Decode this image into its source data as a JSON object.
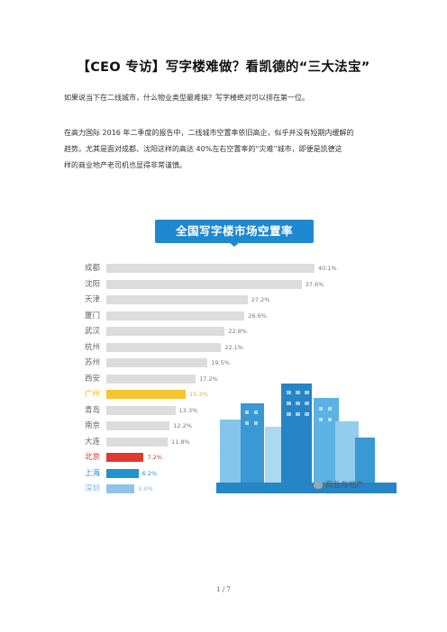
{
  "article": {
    "title": "【CEO 专访】写字楼难做？看凯德的“三大法宝”",
    "para1": "如果说当下在二线城市，什么物业类型最难搞？写字楼绝对可以排在第一位。",
    "para2_line1": "在高力国际 2016 年二季度的报告中，二线城市空置率依旧高企，似乎并没有短期内缓解的",
    "para2_line2": "趋势。尤其是面对成都、沈阳这样的高达 40%左右空置率的“灾难”城市，即便是凯德这",
    "para2_line3": "样的商业地产老司机也显得非常谨慎。"
  },
  "chart_data": {
    "type": "bar",
    "orientation": "horizontal",
    "title": "全国写字楼市场空置率",
    "categories": [
      "成都",
      "沈阳",
      "天津",
      "厦门",
      "武汉",
      "杭州",
      "苏州",
      "西安",
      "广州",
      "青岛",
      "南京",
      "大连",
      "北京",
      "上海",
      "深圳"
    ],
    "values": [
      40.1,
      37.6,
      27.2,
      26.6,
      22.8,
      22.1,
      19.5,
      17.2,
      15.3,
      13.3,
      12.2,
      11.8,
      7.2,
      6.2,
      5.4
    ],
    "value_labels": [
      "40.1%",
      "37.6%",
      "27.2%",
      "26.6%",
      "22.8%",
      "22.1%",
      "19.5%",
      "17.2%",
      "15.3%",
      "13.3%",
      "12.2%",
      "11.8%",
      "7.2%",
      "6.2%",
      "5.4%"
    ],
    "colors": [
      "#dcdcdc",
      "#dcdcdc",
      "#dcdcdc",
      "#dcdcdc",
      "#dcdcdc",
      "#dcdcdc",
      "#dcdcdc",
      "#dcdcdc",
      "#f5c431",
      "#dcdcdc",
      "#dcdcdc",
      "#dcdcdc",
      "#e03a2f",
      "#1f93cf",
      "#8fc3ea"
    ],
    "label_colors": [
      "#666666",
      "#666666",
      "#666666",
      "#666666",
      "#666666",
      "#666666",
      "#666666",
      "#666666",
      "#f5b800",
      "#666666",
      "#666666",
      "#666666",
      "#d9342b",
      "#1f93cf",
      "#7fb8e3"
    ],
    "xlim": [
      0,
      42
    ]
  },
  "watermark": "商业与地产",
  "footer": {
    "page": "1 / 7"
  }
}
